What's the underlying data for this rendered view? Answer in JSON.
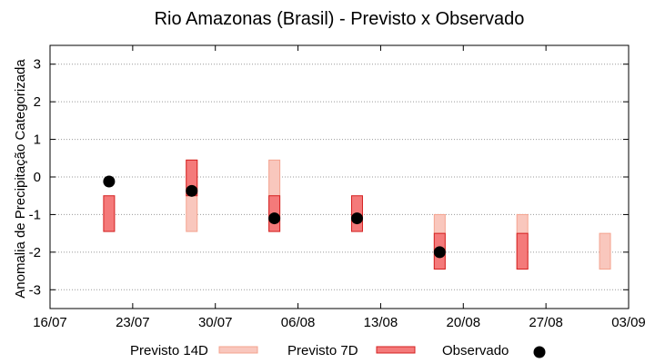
{
  "chart_data": {
    "type": "range-bar",
    "title": "Rio Amazonas (Brasil) - Previsto x Observado",
    "xlabel": "",
    "ylabel": "Anomalia de Precipitação Categorizada",
    "ylim": [
      -3.5,
      3.5
    ],
    "yticks": [
      -3,
      -2,
      -1,
      0,
      1,
      2,
      3
    ],
    "xlim": [
      "2024-07-16",
      "2024-09-03"
    ],
    "xtick_labels": [
      "16/07",
      "23/07",
      "30/07",
      "06/08",
      "13/08",
      "20/08",
      "27/08",
      "03/09"
    ],
    "grid": true,
    "legend_position": "bottom",
    "series": [
      {
        "name": "Previsto 14D",
        "color": "#f4a38f",
        "fill": "#f9c7bd",
        "ranges": [
          {
            "date": "2024-07-28",
            "low": -1.45,
            "high": 0.45
          },
          {
            "date": "2024-08-04",
            "low": -1.45,
            "high": 0.45
          },
          {
            "date": "2024-08-18",
            "low": -2.45,
            "high": -1.0
          },
          {
            "date": "2024-08-25",
            "low": -2.45,
            "high": -1.0
          },
          {
            "date": "2024-09-01",
            "low": -2.45,
            "high": -1.5
          }
        ]
      },
      {
        "name": "Previsto 7D",
        "color": "#d42020",
        "fill": "#f47a7a",
        "ranges": [
          {
            "date": "2024-07-21",
            "low": -1.45,
            "high": -0.5
          },
          {
            "date": "2024-07-28",
            "low": -0.5,
            "high": 0.45
          },
          {
            "date": "2024-08-04",
            "low": -1.45,
            "high": -0.5
          },
          {
            "date": "2024-08-11",
            "low": -1.45,
            "high": -0.5
          },
          {
            "date": "2024-08-18",
            "low": -2.45,
            "high": -1.5
          },
          {
            "date": "2024-08-25",
            "low": -2.45,
            "high": -1.5
          }
        ]
      },
      {
        "name": "Observado",
        "color": "#000000",
        "points": [
          {
            "date": "2024-07-21",
            "value": -0.12
          },
          {
            "date": "2024-07-28",
            "value": -0.37
          },
          {
            "date": "2024-08-04",
            "value": -1.1
          },
          {
            "date": "2024-08-11",
            "value": -1.1
          },
          {
            "date": "2024-08-18",
            "value": -2.0
          }
        ]
      }
    ]
  }
}
